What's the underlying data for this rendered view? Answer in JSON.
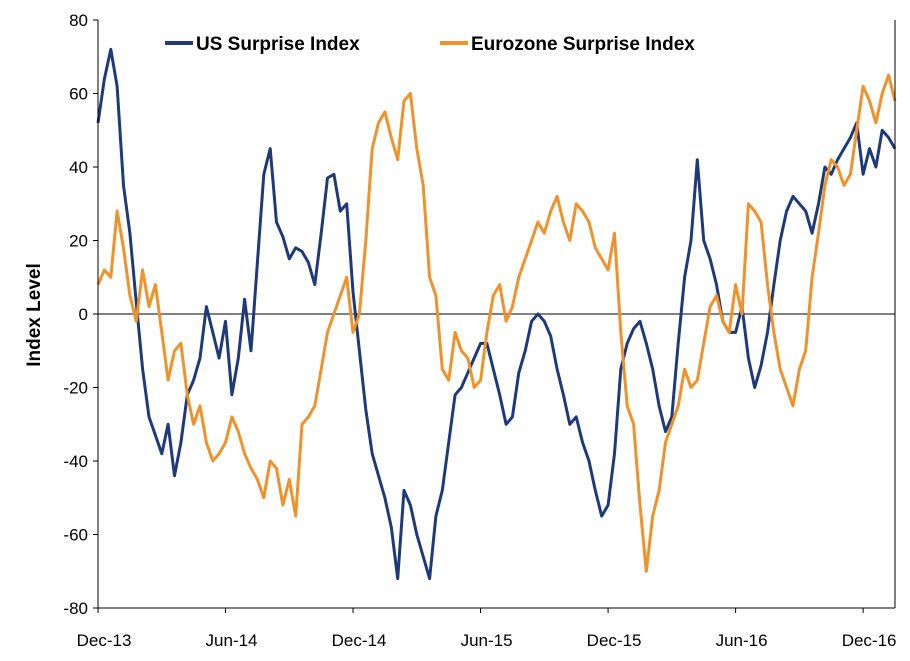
{
  "chart_data": {
    "type": "line",
    "ylabel": "Index Level",
    "ylim": [
      -80,
      80
    ],
    "y_ticks": [
      "80",
      "60",
      "40",
      "20",
      "0",
      "-20",
      "-40",
      "-60",
      "-80"
    ],
    "x_ticks": [
      "Dec-13",
      "Jun-14",
      "Dec-14",
      "Jun-15",
      "Dec-15",
      "Jun-16",
      "Dec-16"
    ],
    "x_tick_months": [
      0,
      6,
      12,
      18,
      24,
      30,
      36
    ],
    "x_range_months": [
      0,
      37.5
    ],
    "legend_position": "top-center",
    "colors": {
      "us": "#1f3a7a",
      "eurozone": "#f0922b"
    },
    "series": [
      {
        "name": "US Surprise Index",
        "x": [
          0,
          0.3,
          0.6,
          0.9,
          1.2,
          1.5,
          1.8,
          2.1,
          2.4,
          2.7,
          3.0,
          3.3,
          3.6,
          3.9,
          4.2,
          4.5,
          4.8,
          5.1,
          5.4,
          5.7,
          6.0,
          6.3,
          6.6,
          6.9,
          7.2,
          7.5,
          7.8,
          8.1,
          8.4,
          8.7,
          9.0,
          9.3,
          9.6,
          9.9,
          10.2,
          10.5,
          10.8,
          11.1,
          11.4,
          11.7,
          12.0,
          12.3,
          12.6,
          12.9,
          13.2,
          13.5,
          13.8,
          14.1,
          14.4,
          14.7,
          15.0,
          15.3,
          15.6,
          15.9,
          16.2,
          16.5,
          16.8,
          17.1,
          17.4,
          17.7,
          18.0,
          18.3,
          18.6,
          18.9,
          19.2,
          19.5,
          19.8,
          20.1,
          20.4,
          20.7,
          21.0,
          21.3,
          21.6,
          21.9,
          22.2,
          22.5,
          22.8,
          23.1,
          23.4,
          23.7,
          24.0,
          24.3,
          24.6,
          24.9,
          25.2,
          25.5,
          25.8,
          26.1,
          26.4,
          26.7,
          27.0,
          27.3,
          27.6,
          27.9,
          28.2,
          28.5,
          28.8,
          29.1,
          29.4,
          29.7,
          30.0,
          30.3,
          30.6,
          30.9,
          31.2,
          31.5,
          31.8,
          32.1,
          32.4,
          32.7,
          33.0,
          33.3,
          33.6,
          33.9,
          34.2,
          34.5,
          34.8,
          35.1,
          35.4,
          35.7,
          36.0,
          36.3,
          36.6,
          36.9,
          37.2,
          37.5
        ],
        "values": [
          52,
          64,
          72,
          62,
          35,
          22,
          3,
          -15,
          -28,
          -33,
          -38,
          -30,
          -44,
          -35,
          -22,
          -18,
          -12,
          2,
          -5,
          -12,
          -2,
          -22,
          -12,
          4,
          -10,
          14,
          38,
          45,
          25,
          21,
          15,
          18,
          17,
          14,
          8,
          22,
          37,
          38,
          28,
          30,
          6,
          -10,
          -26,
          -38,
          -44,
          -50,
          -58,
          -72,
          -48,
          -52,
          -60,
          -66,
          -72,
          -55,
          -48,
          -35,
          -22,
          -20,
          -16,
          -12,
          -8,
          -8,
          -15,
          -22,
          -30,
          -28,
          -16,
          -10,
          -2,
          0,
          -2,
          -6,
          -15,
          -22,
          -30,
          -28,
          -35,
          -40,
          -48,
          -55,
          -52,
          -38,
          -15,
          -8,
          -4,
          -2,
          -8,
          -15,
          -25,
          -32,
          -28,
          -8,
          10,
          20,
          42,
          20,
          15,
          8,
          -2,
          -5,
          -5,
          2,
          -12,
          -20,
          -14,
          -5,
          8,
          20,
          28,
          32,
          30,
          28,
          22,
          30,
          40,
          38,
          42,
          45,
          48,
          52,
          38,
          45,
          40,
          50,
          48,
          45
        ]
      },
      {
        "name": "Eurozone Surprise Index",
        "x": [
          0,
          0.3,
          0.6,
          0.9,
          1.2,
          1.5,
          1.8,
          2.1,
          2.4,
          2.7,
          3.0,
          3.3,
          3.6,
          3.9,
          4.2,
          4.5,
          4.8,
          5.1,
          5.4,
          5.7,
          6.0,
          6.3,
          6.6,
          6.9,
          7.2,
          7.5,
          7.8,
          8.1,
          8.4,
          8.7,
          9.0,
          9.3,
          9.6,
          9.9,
          10.2,
          10.5,
          10.8,
          11.1,
          11.4,
          11.7,
          12.0,
          12.3,
          12.6,
          12.9,
          13.2,
          13.5,
          13.8,
          14.1,
          14.4,
          14.7,
          15.0,
          15.3,
          15.6,
          15.9,
          16.2,
          16.5,
          16.8,
          17.1,
          17.4,
          17.7,
          18.0,
          18.3,
          18.6,
          18.9,
          19.2,
          19.5,
          19.8,
          20.1,
          20.4,
          20.7,
          21.0,
          21.3,
          21.6,
          21.9,
          22.2,
          22.5,
          22.8,
          23.1,
          23.4,
          23.7,
          24.0,
          24.3,
          24.6,
          24.9,
          25.2,
          25.5,
          25.8,
          26.1,
          26.4,
          26.7,
          27.0,
          27.3,
          27.6,
          27.9,
          28.2,
          28.5,
          28.8,
          29.1,
          29.4,
          29.7,
          30.0,
          30.3,
          30.6,
          30.9,
          31.2,
          31.5,
          31.8,
          32.1,
          32.4,
          32.7,
          33.0,
          33.3,
          33.6,
          33.9,
          34.2,
          34.5,
          34.8,
          35.1,
          35.4,
          35.7,
          36.0,
          36.3,
          36.6,
          36.9,
          37.2,
          37.5
        ],
        "values": [
          8,
          12,
          10,
          28,
          18,
          5,
          -2,
          12,
          2,
          8,
          -5,
          -18,
          -10,
          -8,
          -22,
          -30,
          -25,
          -35,
          -40,
          -38,
          -35,
          -28,
          -32,
          -38,
          -42,
          -45,
          -50,
          -40,
          -42,
          -52,
          -45,
          -55,
          -30,
          -28,
          -25,
          -15,
          -5,
          0,
          5,
          10,
          -5,
          0,
          20,
          45,
          52,
          55,
          48,
          42,
          58,
          60,
          45,
          35,
          10,
          5,
          -15,
          -18,
          -5,
          -10,
          -12,
          -20,
          -18,
          -5,
          5,
          8,
          -2,
          2,
          10,
          15,
          20,
          25,
          22,
          28,
          32,
          25,
          20,
          30,
          28,
          25,
          18,
          15,
          12,
          22,
          -5,
          -25,
          -30,
          -52,
          -70,
          -55,
          -48,
          -35,
          -30,
          -25,
          -15,
          -20,
          -18,
          -8,
          2,
          5,
          -2,
          -5,
          8,
          0,
          30,
          28,
          25,
          8,
          -5,
          -15,
          -20,
          -25,
          -15,
          -10,
          10,
          22,
          35,
          42,
          40,
          35,
          38,
          50,
          62,
          58,
          52,
          60,
          65,
          58
        ]
      }
    ]
  }
}
